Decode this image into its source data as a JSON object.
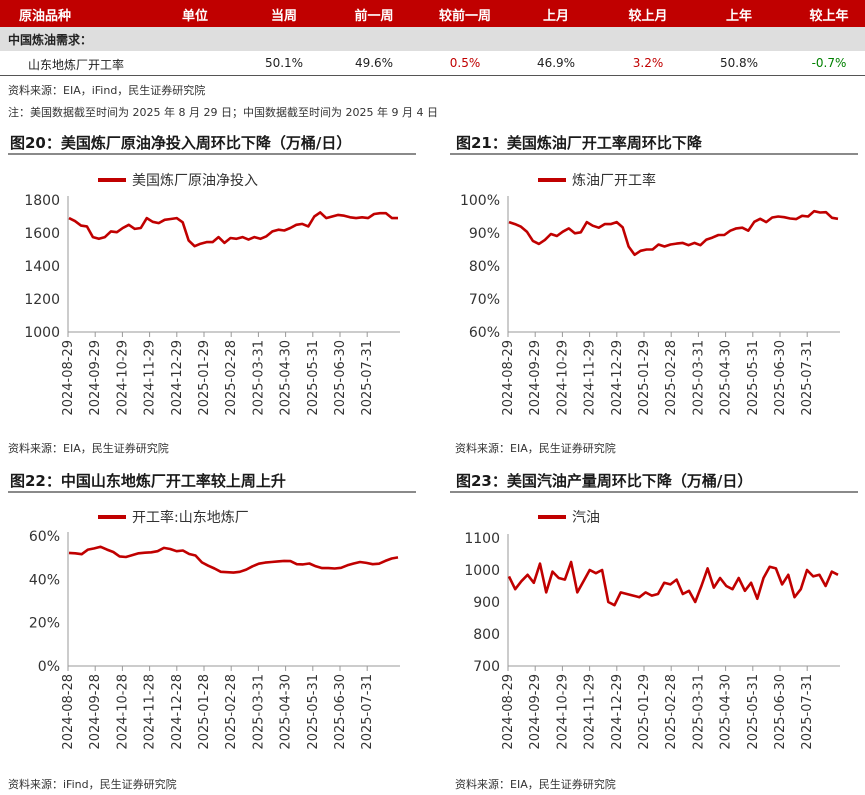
{
  "table": {
    "headers": [
      "原油品种",
      "单位",
      "当周",
      "前一周",
      "较前一周",
      "上月",
      "较上月",
      "上年",
      "较上年"
    ],
    "section_title": "中国炼油需求：",
    "row": {
      "name": "山东地炼厂开工率",
      "unit": "",
      "current": "50.1%",
      "prev_week": "49.6%",
      "wow": "0.5%",
      "prev_month": "46.9%",
      "mom": "3.2%",
      "prev_year": "50.8%",
      "yoy": "-0.7%"
    },
    "source": "资料来源：EIA，iFind，民生证券研究院",
    "note": "注：美国数据截至时间为 2025 年 8 月 29 日；中国数据截至时间为 2025 年 9 月 4 日"
  },
  "colors": {
    "series": "#c00000",
    "header_bg": "#c00000",
    "section_bg": "#dedede",
    "up": "#c00000",
    "down": "#008000"
  },
  "figures": [
    {
      "title": "图20：美国炼厂原油净投入周环比下降（万桶/日）",
      "source": "资料来源：EIA，民生证券研究院"
    },
    {
      "title": "图21：美国炼油厂开工率周环比下降",
      "source": "资料来源：EIA，民生证券研究院"
    },
    {
      "title": "图22：中国山东地炼厂开工率较上周上升",
      "source": "资料来源：iFind，民生证券研究院"
    },
    {
      "title": "图23：美国汽油产量周环比下降（万桶/日）",
      "source": "资料来源：EIA，民生证券研究院"
    }
  ],
  "chart_data": [
    {
      "type": "line",
      "legend": "美国炼厂原油净投入",
      "ylim": [
        1000,
        1800
      ],
      "yticks": [
        "1000",
        "1200",
        "1400",
        "1600",
        "1800"
      ],
      "tick_values": [
        1000,
        1200,
        1400,
        1600,
        1800
      ],
      "xticks": [
        "2024-08-29",
        "2024-09-29",
        "2024-10-29",
        "2024-11-29",
        "2024-12-29",
        "2025-01-29",
        "2025-02-28",
        "2025-03-31",
        "2025-04-30",
        "2025-05-31",
        "2025-06-30",
        "2025-07-31"
      ],
      "series": [
        {
          "values": [
            1690,
            1672,
            1645,
            1640,
            1575,
            1565,
            1575,
            1610,
            1605,
            1630,
            1650,
            1625,
            1630,
            1690,
            1668,
            1660,
            1680,
            1685,
            1690,
            1665,
            1555,
            1520,
            1535,
            1545,
            1545,
            1575,
            1540,
            1570,
            1565,
            1575,
            1560,
            1575,
            1565,
            1580,
            1610,
            1620,
            1615,
            1630,
            1650,
            1655,
            1640,
            1700,
            1725,
            1690,
            1700,
            1710,
            1705,
            1695,
            1690,
            1695,
            1690,
            1715,
            1720,
            1720,
            1690,
            1690
          ]
        }
      ]
    },
    {
      "type": "line",
      "legend": "炼油厂开工率",
      "ylim": [
        60,
        100
      ],
      "yticks": [
        "60%",
        "70%",
        "80%",
        "90%",
        "100%"
      ],
      "tick_values": [
        60,
        70,
        80,
        90,
        100
      ],
      "xticks": [
        "2024-08-29",
        "2024-09-29",
        "2024-10-29",
        "2024-11-29",
        "2024-12-29",
        "2025-01-29",
        "2025-02-28",
        "2025-03-31",
        "2025-04-30",
        "2025-05-31",
        "2025-06-30",
        "2025-07-31"
      ],
      "series": [
        {
          "values": [
            93.3,
            92.7,
            91.9,
            90.4,
            87.6,
            86.7,
            87.9,
            89.7,
            89.1,
            90.4,
            91.4,
            89.9,
            90.2,
            93.3,
            92.2,
            91.6,
            92.7,
            92.7,
            93.3,
            91.7,
            85.9,
            83.4,
            84.6,
            85.0,
            85.0,
            86.5,
            85.9,
            86.5,
            86.8,
            87.0,
            86.3,
            87.0,
            86.3,
            88.0,
            88.6,
            89.4,
            89.4,
            90.7,
            91.4,
            91.6,
            90.7,
            93.4,
            94.3,
            93.3,
            94.7,
            95.0,
            94.8,
            94.4,
            94.2,
            95.2,
            95.0,
            96.6,
            96.2,
            96.3,
            94.6,
            94.3
          ]
        }
      ]
    },
    {
      "type": "line",
      "legend": "开工率:山东地炼厂",
      "ylim": [
        0,
        60
      ],
      "yticks": [
        "0%",
        "20%",
        "40%",
        "60%"
      ],
      "tick_values": [
        0,
        20,
        40,
        60
      ],
      "xticks": [
        "2024-08-28",
        "2024-09-28",
        "2024-10-28",
        "2024-11-28",
        "2024-12-28",
        "2025-01-28",
        "2025-02-28",
        "2025-03-31",
        "2025-04-30",
        "2025-05-31",
        "2025-06-30",
        "2025-07-31"
      ],
      "series": [
        {
          "values": [
            52.2,
            52.0,
            51.6,
            53.7,
            54.3,
            55.0,
            53.7,
            52.6,
            50.6,
            50.3,
            51.2,
            52.0,
            52.3,
            52.5,
            53.0,
            54.5,
            54.0,
            53.0,
            53.3,
            51.7,
            51.0,
            47.8,
            46.3,
            45.0,
            43.5,
            43.3,
            43.1,
            43.5,
            44.5,
            46.0,
            47.2,
            47.7,
            48.0,
            48.3,
            48.5,
            48.4,
            47.0,
            46.9,
            47.3,
            46.0,
            45.2,
            45.2,
            45.0,
            45.3,
            46.5,
            47.3,
            48.0,
            47.6,
            47.0,
            47.2,
            48.5,
            49.6,
            50.1
          ]
        }
      ]
    },
    {
      "type": "line",
      "legend": "汽油",
      "ylim": [
        700,
        1100
      ],
      "yticks": [
        "700",
        "800",
        "900",
        "1000",
        "1100"
      ],
      "tick_values": [
        700,
        800,
        900,
        1000,
        1100
      ],
      "xticks": [
        "2024-08-29",
        "2024-09-29",
        "2024-10-29",
        "2024-11-29",
        "2024-12-29",
        "2025-01-29",
        "2025-02-28",
        "2025-03-31",
        "2025-04-30",
        "2025-05-31",
        "2025-06-30",
        "2025-07-31"
      ],
      "series": [
        {
          "values": [
            980,
            940,
            965,
            985,
            960,
            1020,
            930,
            995,
            975,
            970,
            1025,
            930,
            965,
            1000,
            990,
            1000,
            900,
            890,
            930,
            925,
            920,
            915,
            930,
            920,
            925,
            960,
            955,
            970,
            925,
            935,
            900,
            950,
            1005,
            945,
            975,
            950,
            940,
            975,
            935,
            960,
            910,
            975,
            1010,
            1005,
            955,
            985,
            915,
            940,
            1000,
            980,
            985,
            950,
            995,
            985
          ]
        }
      ]
    }
  ]
}
